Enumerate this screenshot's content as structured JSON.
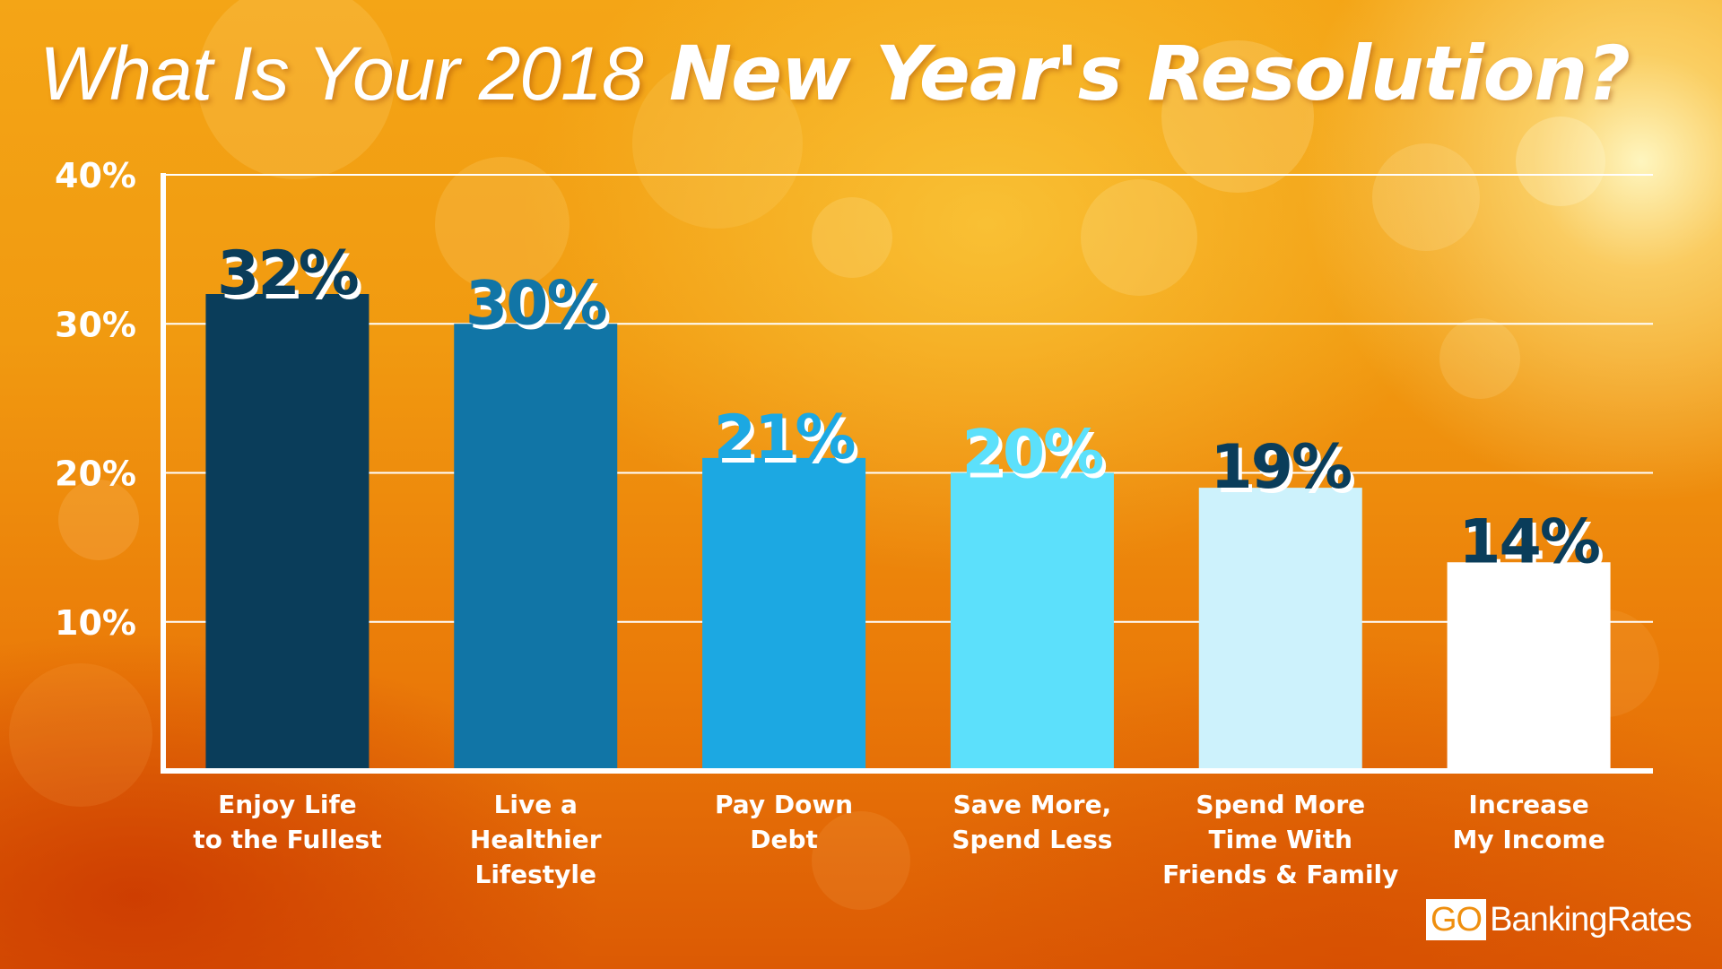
{
  "header": {
    "title_light": "What Is Your 2018",
    "title_bold": "New Year's Resolution?"
  },
  "chart_data": {
    "type": "bar",
    "title": "What Is Your 2018 New Year's Resolution?",
    "categories": [
      "Enjoy Life to the Fullest",
      "Live a Healthier Lifestyle",
      "Pay Down Debt",
      "Save More, Spend Less",
      "Spend More Time With Friends & Family",
      "Increase My Income"
    ],
    "category_lines": [
      [
        "Enjoy Life",
        "to the Fullest"
      ],
      [
        "Live a",
        "Healthier",
        "Lifestyle"
      ],
      [
        "Pay Down",
        "Debt"
      ],
      [
        "Save More,",
        "Spend Less"
      ],
      [
        "Spend More",
        "Time With",
        "Friends & Family"
      ],
      [
        "Increase",
        "My Income"
      ]
    ],
    "values": [
      32,
      30,
      21,
      20,
      19,
      14
    ],
    "value_labels": [
      "32%",
      "30%",
      "21%",
      "20%",
      "19%",
      "14%"
    ],
    "bar_colors": [
      "#0a3d5a",
      "#1175a6",
      "#1ca8e2",
      "#5ce0fb",
      "#cdf2fc",
      "#ffffff"
    ],
    "label_colors": [
      "#0a3d5a",
      "#1175a6",
      "#1ca8e2",
      "#5ce0fb",
      "#0a3d5a",
      "#0a3d5a"
    ],
    "ylim": [
      0,
      40
    ],
    "yticks": [
      10,
      20,
      30,
      40
    ],
    "ytick_labels": [
      "10%",
      "20%",
      "30%",
      "40%"
    ],
    "grid": true,
    "xlabel": "",
    "ylabel": ""
  },
  "branding": {
    "logo_go": "GO",
    "logo_rest": "BankingRates"
  }
}
